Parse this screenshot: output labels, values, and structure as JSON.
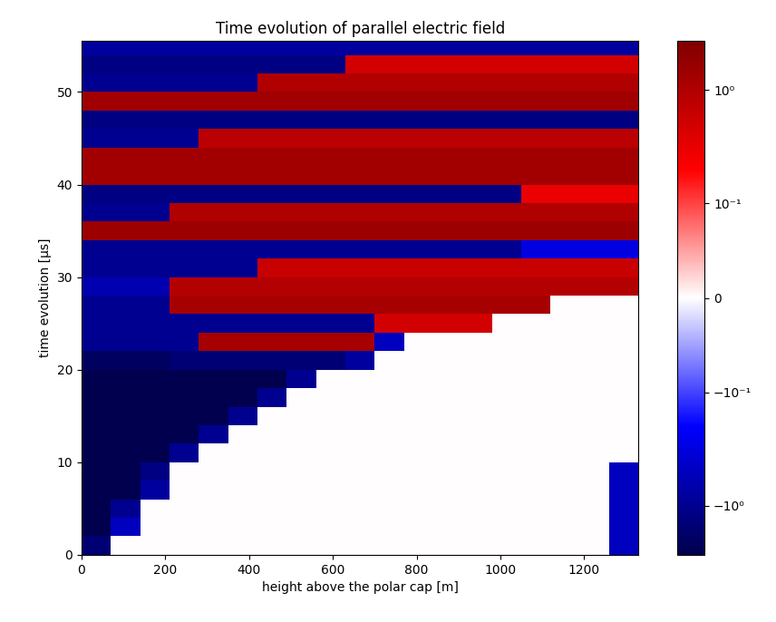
{
  "chart_data": {
    "type": "heatmap",
    "title": "Time evolution of parallel electric field",
    "x_label": "height above the polar cap [m]",
    "y_label": "time evolution [μs]",
    "xlim": [
      0,
      1330
    ],
    "ylim": [
      0,
      55.5
    ],
    "xticks": [
      0,
      200,
      400,
      600,
      800,
      1000,
      1200
    ],
    "yticks": [
      0,
      10,
      20,
      30,
      40,
      50
    ],
    "x_edges": [
      0,
      70,
      140,
      210,
      280,
      350,
      420,
      490,
      560,
      630,
      700,
      770,
      840,
      910,
      980,
      1050,
      1120,
      1190,
      1260,
      1330
    ],
    "y_edges": [
      0,
      2,
      4,
      6,
      8,
      10,
      12,
      14,
      16,
      18,
      20,
      22,
      24,
      26,
      28,
      30,
      32,
      34,
      36,
      38,
      40,
      42,
      44,
      46,
      48,
      50,
      52,
      54,
      56
    ],
    "cells": [
      [
        -1.5,
        0,
        0,
        0,
        0,
        0,
        0,
        0,
        0,
        0,
        0,
        0,
        0,
        0,
        0,
        0,
        0,
        0,
        -0.5
      ],
      [
        -2.5,
        -0.5,
        0,
        0,
        0,
        0,
        0,
        0,
        0,
        0,
        0,
        0,
        0,
        0,
        0,
        0,
        0,
        0,
        -0.5
      ],
      [
        -2.5,
        -1.0,
        0,
        0,
        0,
        0,
        0,
        0,
        0,
        0,
        0,
        0,
        0,
        0,
        0,
        0,
        0,
        0,
        -0.5
      ],
      [
        -2.5,
        -2.5,
        -0.8,
        0,
        0,
        0,
        0,
        0,
        0,
        0,
        0,
        0,
        0,
        0,
        0,
        0,
        0,
        0,
        -0.5
      ],
      [
        -2.5,
        -2.5,
        -1.2,
        0,
        0,
        0,
        0,
        0,
        0,
        0,
        0,
        0,
        0,
        0,
        0,
        0,
        0,
        0,
        -0.5
      ],
      [
        -2.5,
        -2.5,
        -2.5,
        -1.0,
        0,
        0,
        0,
        0,
        0,
        0,
        0,
        0,
        0,
        0,
        0,
        0,
        0,
        0,
        0
      ],
      [
        -2.5,
        -2.5,
        -2.5,
        -2.5,
        -1.0,
        0,
        0,
        0,
        0,
        0,
        0,
        0,
        0,
        0,
        0,
        0,
        0,
        0,
        0
      ],
      [
        -2.5,
        -2.5,
        -2.5,
        -2.5,
        -2.5,
        -1.0,
        0,
        0,
        0,
        0,
        0,
        0,
        0,
        0,
        0,
        0,
        0,
        0,
        0
      ],
      [
        -2.5,
        -2.5,
        -2.5,
        -2.5,
        -2.5,
        -2.5,
        -1.0,
        0,
        0,
        0,
        0,
        0,
        0,
        0,
        0,
        0,
        0,
        0,
        0
      ],
      [
        -2.5,
        -2.5,
        -2.5,
        -2.5,
        -2.5,
        -2.5,
        -2.5,
        -1.0,
        0,
        0,
        0,
        0,
        0,
        0,
        0,
        0,
        0,
        0,
        0
      ],
      [
        -2.0,
        -2.0,
        -2.0,
        -1.5,
        -1.5,
        -1.5,
        -1.5,
        -1.5,
        -1.5,
        -0.8,
        0,
        0,
        0,
        0,
        0,
        0,
        0,
        0,
        0
      ],
      [
        -1,
        -1,
        -1,
        -1,
        1.2,
        1.2,
        1.2,
        1.2,
        1.2,
        1.2,
        -0.5,
        0,
        0,
        0,
        0,
        0,
        0,
        0,
        0
      ],
      [
        -1,
        -1,
        -1,
        -1,
        -1,
        -1,
        -1,
        -1,
        -1,
        -1,
        0.5,
        0.5,
        0.5,
        0.5,
        0,
        0,
        0,
        0,
        0
      ],
      [
        -1,
        -1,
        -1,
        1.2,
        1.2,
        1.2,
        1.2,
        1.2,
        1.2,
        1.2,
        1.2,
        1.2,
        1.2,
        1.2,
        1.2,
        1.2,
        0,
        0,
        0
      ],
      [
        -0.6,
        -0.6,
        -0.6,
        0.9,
        0.9,
        0.9,
        0.9,
        0.9,
        0.9,
        0.9,
        0.9,
        0.9,
        0.9,
        0.9,
        0.9,
        0.9,
        0.9,
        0.9,
        0.9
      ],
      [
        -1,
        -1,
        -1,
        -1,
        -1,
        -1,
        0.6,
        0.6,
        0.6,
        0.6,
        0.6,
        0.6,
        0.6,
        0.6,
        0.6,
        0.6,
        0.6,
        0.6,
        0.6
      ],
      [
        -1,
        -1,
        -1,
        -1,
        -1,
        -1,
        -1,
        -1,
        -1,
        -1,
        -1,
        -1,
        -1,
        -1,
        -1,
        -0.3,
        -0.3,
        -0.3,
        -0.3
      ],
      [
        1.5,
        1.5,
        1.5,
        1.5,
        1.5,
        1.5,
        1.5,
        1.5,
        1.5,
        1.5,
        1.5,
        1.5,
        1.5,
        1.5,
        1.5,
        1.5,
        1.5,
        1.5,
        1.5
      ],
      [
        -1,
        -1,
        -1,
        1.0,
        1.0,
        1.0,
        1.0,
        1.0,
        1.0,
        1.0,
        1.0,
        1.0,
        1.0,
        1.0,
        1.0,
        1.0,
        1.0,
        1.0,
        1.0
      ],
      [
        -1.2,
        -1.2,
        -1.2,
        -1.2,
        -1.2,
        -1.2,
        -1.2,
        -1.2,
        -1.2,
        -1.2,
        -1.2,
        -1.2,
        -1.2,
        -1.2,
        -1.2,
        0.3,
        0.3,
        0.3,
        0.3
      ],
      [
        1.3,
        1.3,
        1.3,
        1.3,
        1.3,
        1.3,
        1.3,
        1.3,
        1.3,
        1.3,
        1.3,
        1.3,
        1.3,
        1.3,
        1.3,
        1.3,
        1.3,
        1.3,
        1.3
      ],
      [
        1.3,
        1.3,
        1.3,
        1.3,
        1.3,
        1.3,
        1.3,
        1.3,
        1.3,
        1.3,
        1.3,
        1.3,
        1.3,
        1.3,
        1.3,
        1.3,
        1.3,
        1.3,
        1.3
      ],
      [
        -1,
        -1,
        -1,
        -1,
        0.8,
        0.8,
        0.8,
        0.8,
        0.8,
        0.8,
        0.8,
        0.8,
        0.8,
        0.8,
        0.8,
        0.8,
        0.8,
        0.8,
        0.8
      ],
      [
        -1.2,
        -1.2,
        -1.2,
        -1.2,
        -1.2,
        -1.2,
        -1.2,
        -1.2,
        -1.2,
        -1.2,
        -1.2,
        -1.2,
        -1.2,
        -1.2,
        -1.2,
        -1.2,
        -1.2,
        -1.2,
        -1.2
      ],
      [
        1.4,
        1.4,
        1.4,
        1.4,
        1.4,
        1.4,
        1.4,
        1.4,
        1.4,
        1.4,
        1.4,
        1.4,
        1.4,
        1.4,
        1.4,
        1.4,
        1.4,
        1.4,
        1.4
      ],
      [
        -1,
        -1,
        -1,
        -1,
        -1,
        -1,
        1.0,
        1.0,
        1.0,
        1.0,
        1.0,
        1.0,
        1.0,
        1.0,
        1.0,
        1.0,
        1.0,
        1.0,
        1.0
      ],
      [
        -1.2,
        -1.2,
        -1.2,
        -1.2,
        -1.2,
        -1.2,
        -1.2,
        -1.2,
        -1.2,
        0.5,
        0.5,
        0.5,
        0.5,
        0.5,
        0.5,
        0.5,
        0.5,
        0.5,
        0.5
      ],
      [
        -0.8,
        -0.8,
        -0.8,
        -0.8,
        -0.8,
        -0.8,
        -0.8,
        -0.8,
        -0.8,
        -0.8,
        -0.8,
        -0.8,
        -0.8,
        -0.8,
        -0.8,
        -0.8,
        -0.8,
        -0.8,
        -0.8
      ]
    ],
    "color_range": [
      -2.7,
      2.7
    ],
    "color_ticks": [
      {
        "value": 1,
        "label": "10⁰"
      },
      {
        "value": 0.1,
        "label": "10⁻¹"
      },
      0,
      {
        "value": -0.1,
        "label": "−10⁻¹"
      },
      {
        "value": -1,
        "label": "−10⁰"
      }
    ]
  }
}
